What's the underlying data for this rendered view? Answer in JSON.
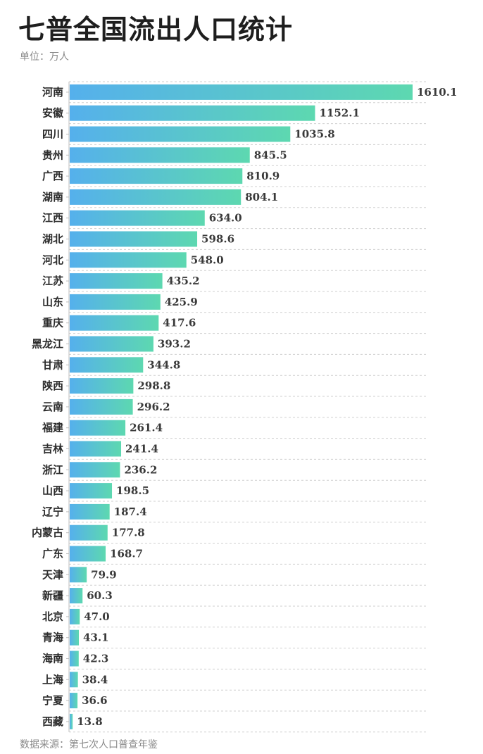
{
  "header": {
    "title": "七普全国流出人口统计",
    "unit": "单位：万人"
  },
  "footer": {
    "source": "数据来源：第七次人口普查年鉴"
  },
  "colors": {
    "bar_start": "#55b0ec",
    "bar_end": "#5dd8b0",
    "grid": "#cfcfcf",
    "axis": "#bdbdbd"
  },
  "chart_data": {
    "type": "bar",
    "orientation": "horizontal",
    "title": "七普全国流出人口统计",
    "xlabel": "",
    "ylabel": "",
    "unit": "万人",
    "grid": true,
    "categories": [
      "河南",
      "安徽",
      "四川",
      "贵州",
      "广西",
      "湖南",
      "江西",
      "湖北",
      "河北",
      "江苏",
      "山东",
      "重庆",
      "黑龙江",
      "甘肃",
      "陕西",
      "云南",
      "福建",
      "吉林",
      "浙江",
      "山西",
      "辽宁",
      "内蒙古",
      "广东",
      "天津",
      "新疆",
      "北京",
      "青海",
      "海南",
      "上海",
      "宁夏",
      "西藏"
    ],
    "values": [
      1610.1,
      1152.1,
      1035.8,
      845.5,
      810.9,
      804.1,
      634.0,
      598.6,
      548.0,
      435.2,
      425.9,
      417.6,
      393.2,
      344.8,
      298.8,
      296.2,
      261.4,
      241.4,
      236.2,
      198.5,
      187.4,
      177.8,
      168.7,
      79.9,
      60.3,
      47.0,
      43.1,
      42.3,
      38.4,
      36.6,
      13.8
    ],
    "value_labels": [
      "1610.1",
      "1152.1",
      "1035.8",
      "845.5",
      "810.9",
      "804.1",
      "634.0",
      "598.6",
      "548.0",
      "435.2",
      "425.9",
      "417.6",
      "393.2",
      "344.8",
      "298.8",
      "296.2",
      "261.4",
      "241.4",
      "236.2",
      "198.5",
      "187.4",
      "177.8",
      "168.7",
      "79.9",
      "60.3",
      "47.0",
      "43.1",
      "42.3",
      "38.4",
      "36.6",
      "13.8"
    ]
  }
}
